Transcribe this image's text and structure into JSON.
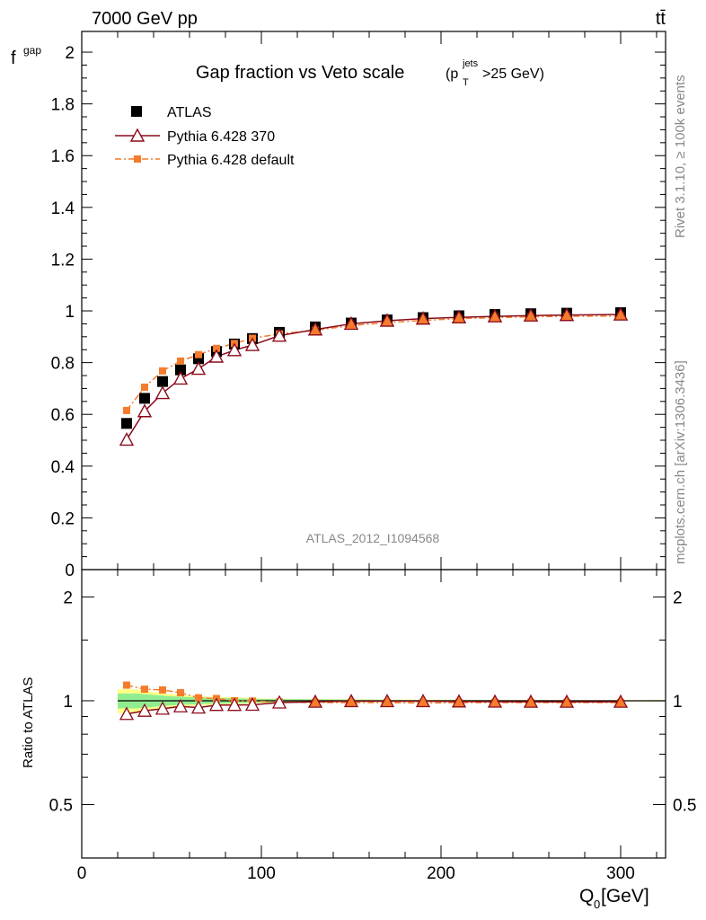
{
  "header": {
    "process": "7000 GeV pp",
    "final_state": "tt̄"
  },
  "side_labels": {
    "rivet": "Rivet 3.1.10, ≥ 100k events",
    "mcplots": "mcplots.cern.ch [arXiv:1306.3436]"
  },
  "colors": {
    "atlas": "#000000",
    "pythia370": "#8b0b1b",
    "pythia_default": "#f47c2c",
    "band_inner": "#90ee90",
    "band_outer": "#ffff88"
  },
  "chart_data": [
    {
      "type": "scatter",
      "title_main": "Gap fraction vs Veto scale",
      "title_sub": "(p",
      "title_sub_sup": "jets",
      "title_sub_sub": "T",
      "title_sub_rest": ">25 GeV)",
      "ylabel": "f",
      "ylabel_sub": "gap",
      "analysis_label": "ATLAS_2012_I1094568",
      "xlim": [
        0,
        325
      ],
      "ylim": [
        0,
        2.08
      ],
      "yticks": [
        "0",
        "0.2",
        "0.4",
        "0.6",
        "0.8",
        "1",
        "1.2",
        "1.4",
        "1.6",
        "1.8",
        "2"
      ],
      "legend_position": "top-left",
      "x": [
        25,
        35,
        45,
        55,
        65,
        75,
        85,
        95,
        110,
        130,
        150,
        170,
        190,
        210,
        230,
        250,
        270,
        300
      ],
      "series": [
        {
          "name": "ATLAS",
          "style": "square",
          "values": [
            0.565,
            0.662,
            0.727,
            0.772,
            0.815,
            0.843,
            0.872,
            0.893,
            0.917,
            0.938,
            0.953,
            0.965,
            0.974,
            0.981,
            0.986,
            0.989,
            0.991,
            0.993
          ]
        },
        {
          "name": "Pythia 6.428 370",
          "style": "triangle-line",
          "values": [
            0.502,
            0.612,
            0.682,
            0.738,
            0.776,
            0.823,
            0.848,
            0.868,
            0.904,
            0.928,
            0.95,
            0.962,
            0.97,
            0.975,
            0.979,
            0.982,
            0.984,
            0.986
          ]
        },
        {
          "name": "Pythia 6.428 default",
          "style": "square-dashdot",
          "values": [
            0.615,
            0.705,
            0.768,
            0.806,
            0.831,
            0.855,
            0.874,
            0.894,
            0.911,
            0.925,
            0.943,
            0.955,
            0.963,
            0.97,
            0.974,
            0.977,
            0.979,
            0.98
          ]
        }
      ]
    },
    {
      "type": "line",
      "ylabel": "Ratio to ATLAS",
      "xlabel_main": "Q",
      "xlabel_sub": "0",
      "xlabel_rest": " [GeV]",
      "xlim": [
        0,
        325
      ],
      "ylim": [
        0.35,
        2.4
      ],
      "xticks": [
        "0",
        "100",
        "200",
        "300"
      ],
      "yticks": [
        "0.5",
        "1",
        "2"
      ],
      "x": [
        25,
        35,
        45,
        55,
        65,
        75,
        85,
        95,
        110,
        130,
        150,
        170,
        190,
        210,
        230,
        250,
        270,
        300
      ],
      "band": {
        "x": [
          20,
          30,
          40,
          50,
          60,
          70,
          80,
          90,
          100,
          120,
          140,
          160,
          180,
          200,
          220,
          240,
          260,
          280,
          325
        ],
        "inner_lo": [
          0.95,
          0.95,
          0.96,
          0.97,
          0.975,
          0.98,
          0.982,
          0.985,
          0.988,
          0.99,
          0.992,
          0.993,
          0.994,
          0.995,
          0.995,
          0.996,
          0.996,
          0.997,
          0.997
        ],
        "inner_hi": [
          1.05,
          1.05,
          1.04,
          1.03,
          1.025,
          1.02,
          1.018,
          1.015,
          1.012,
          1.01,
          1.008,
          1.007,
          1.006,
          1.005,
          1.005,
          1.004,
          1.004,
          1.003,
          1.003
        ],
        "outer_lo": [
          0.92,
          0.92,
          0.94,
          0.955,
          0.965,
          0.972,
          0.976,
          0.98,
          0.985,
          0.988,
          0.99,
          0.991,
          0.992,
          0.993,
          0.994,
          0.995,
          0.995,
          0.996,
          0.996
        ],
        "outer_hi": [
          1.08,
          1.08,
          1.06,
          1.045,
          1.035,
          1.028,
          1.024,
          1.02,
          1.015,
          1.012,
          1.01,
          1.009,
          1.008,
          1.007,
          1.006,
          1.005,
          1.005,
          1.004,
          1.004
        ]
      },
      "series": [
        {
          "name": "Pythia 6.428 370",
          "values": [
            0.915,
            0.935,
            0.948,
            0.963,
            0.955,
            0.972,
            0.972,
            0.973,
            0.988,
            0.993,
            0.997,
            0.997,
            0.997,
            0.995,
            0.994,
            0.993,
            0.993,
            0.993
          ]
        },
        {
          "name": "Pythia 6.428 default",
          "values": [
            1.11,
            1.08,
            1.075,
            1.055,
            1.02,
            1.015,
            1.0,
            0.998,
            0.992,
            0.988,
            0.988,
            0.988,
            0.985,
            0.988,
            0.988,
            0.988,
            0.988,
            0.988
          ]
        }
      ]
    }
  ]
}
